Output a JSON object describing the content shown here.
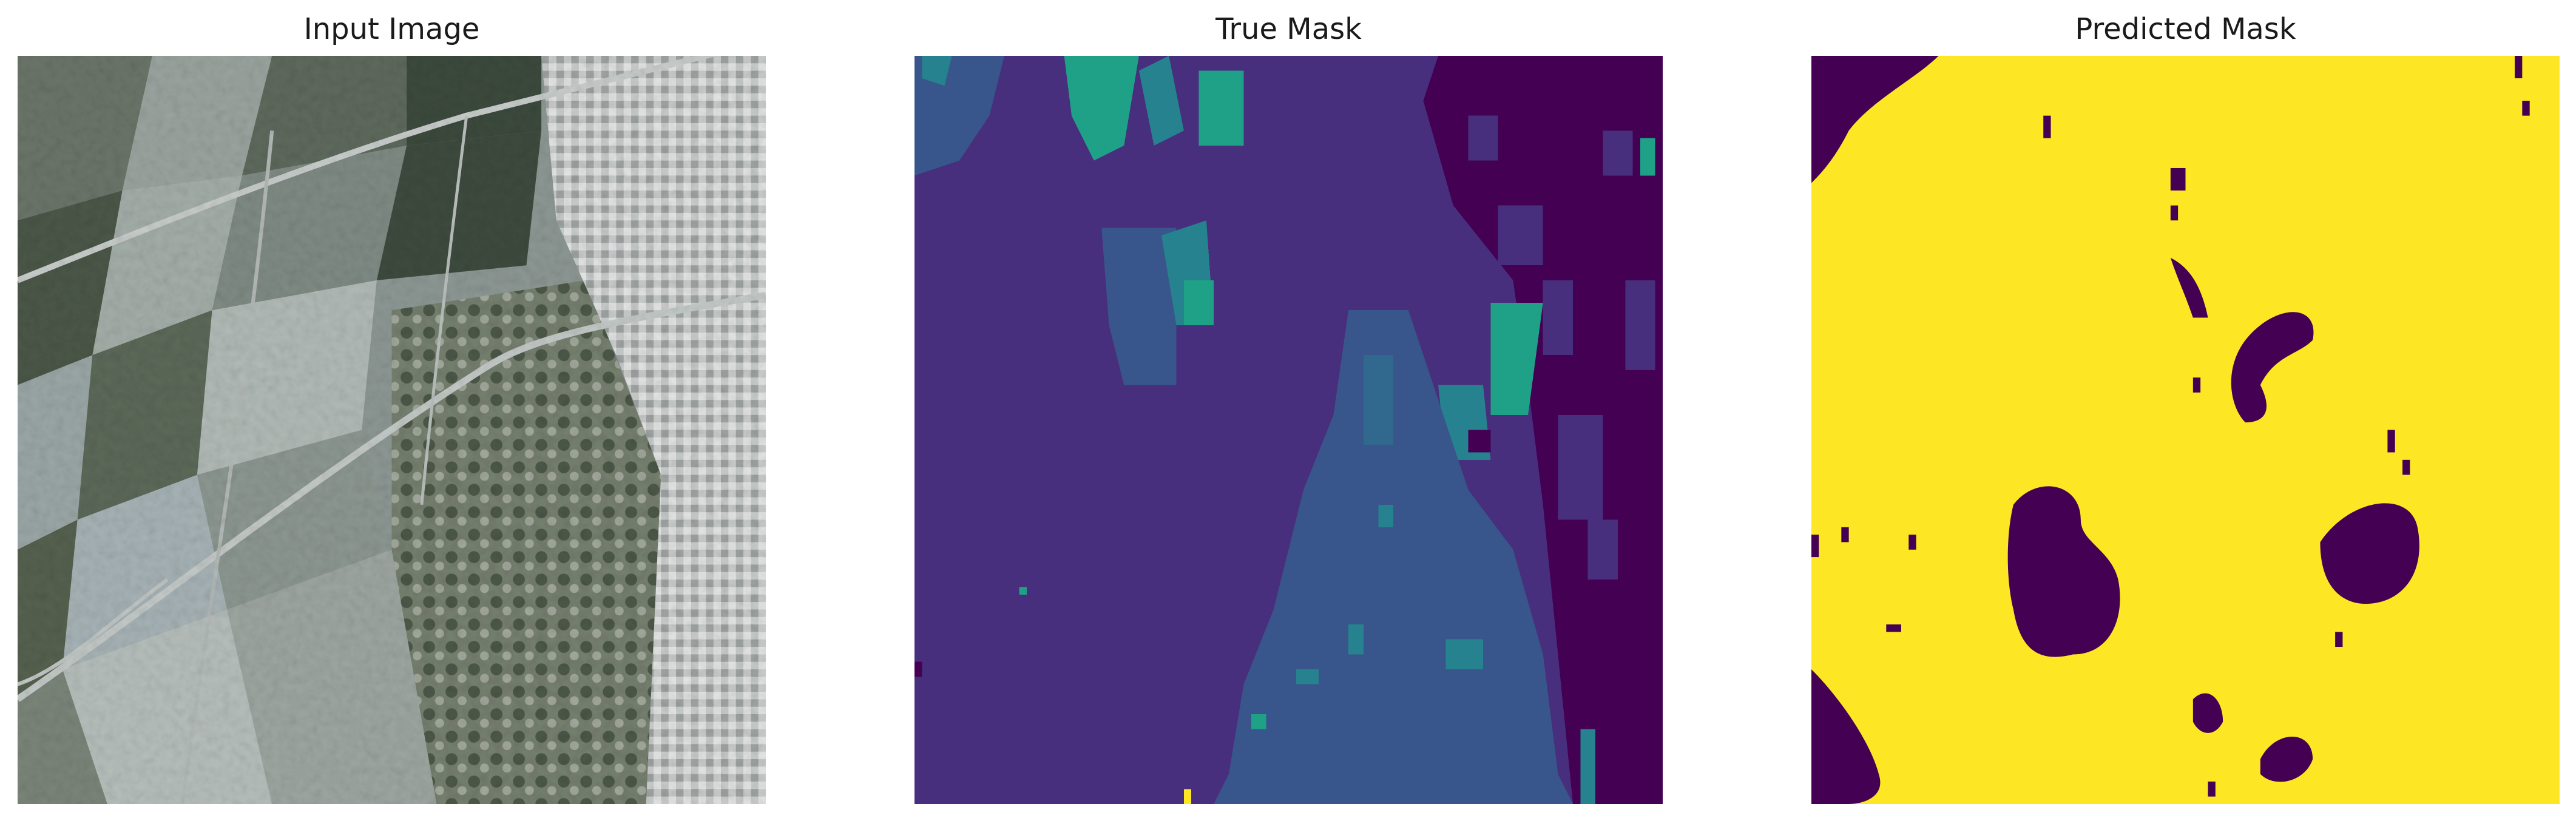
{
  "figure": {
    "panels": [
      {
        "title": "Input Image"
      },
      {
        "title": "True Mask"
      },
      {
        "title": "Predicted Mask"
      }
    ]
  },
  "colors": {
    "viridis_purple": "#440154",
    "viridis_indigo": "#472f7d",
    "viridis_blue": "#39568c",
    "viridis_teal": "#26828e",
    "viridis_green": "#1fa187",
    "viridis_yellow": "#fde725",
    "satellite_field_dark": "#3f4a40",
    "satellite_field_light": "#8f9a96",
    "satellite_urban": "#c7cac9"
  }
}
